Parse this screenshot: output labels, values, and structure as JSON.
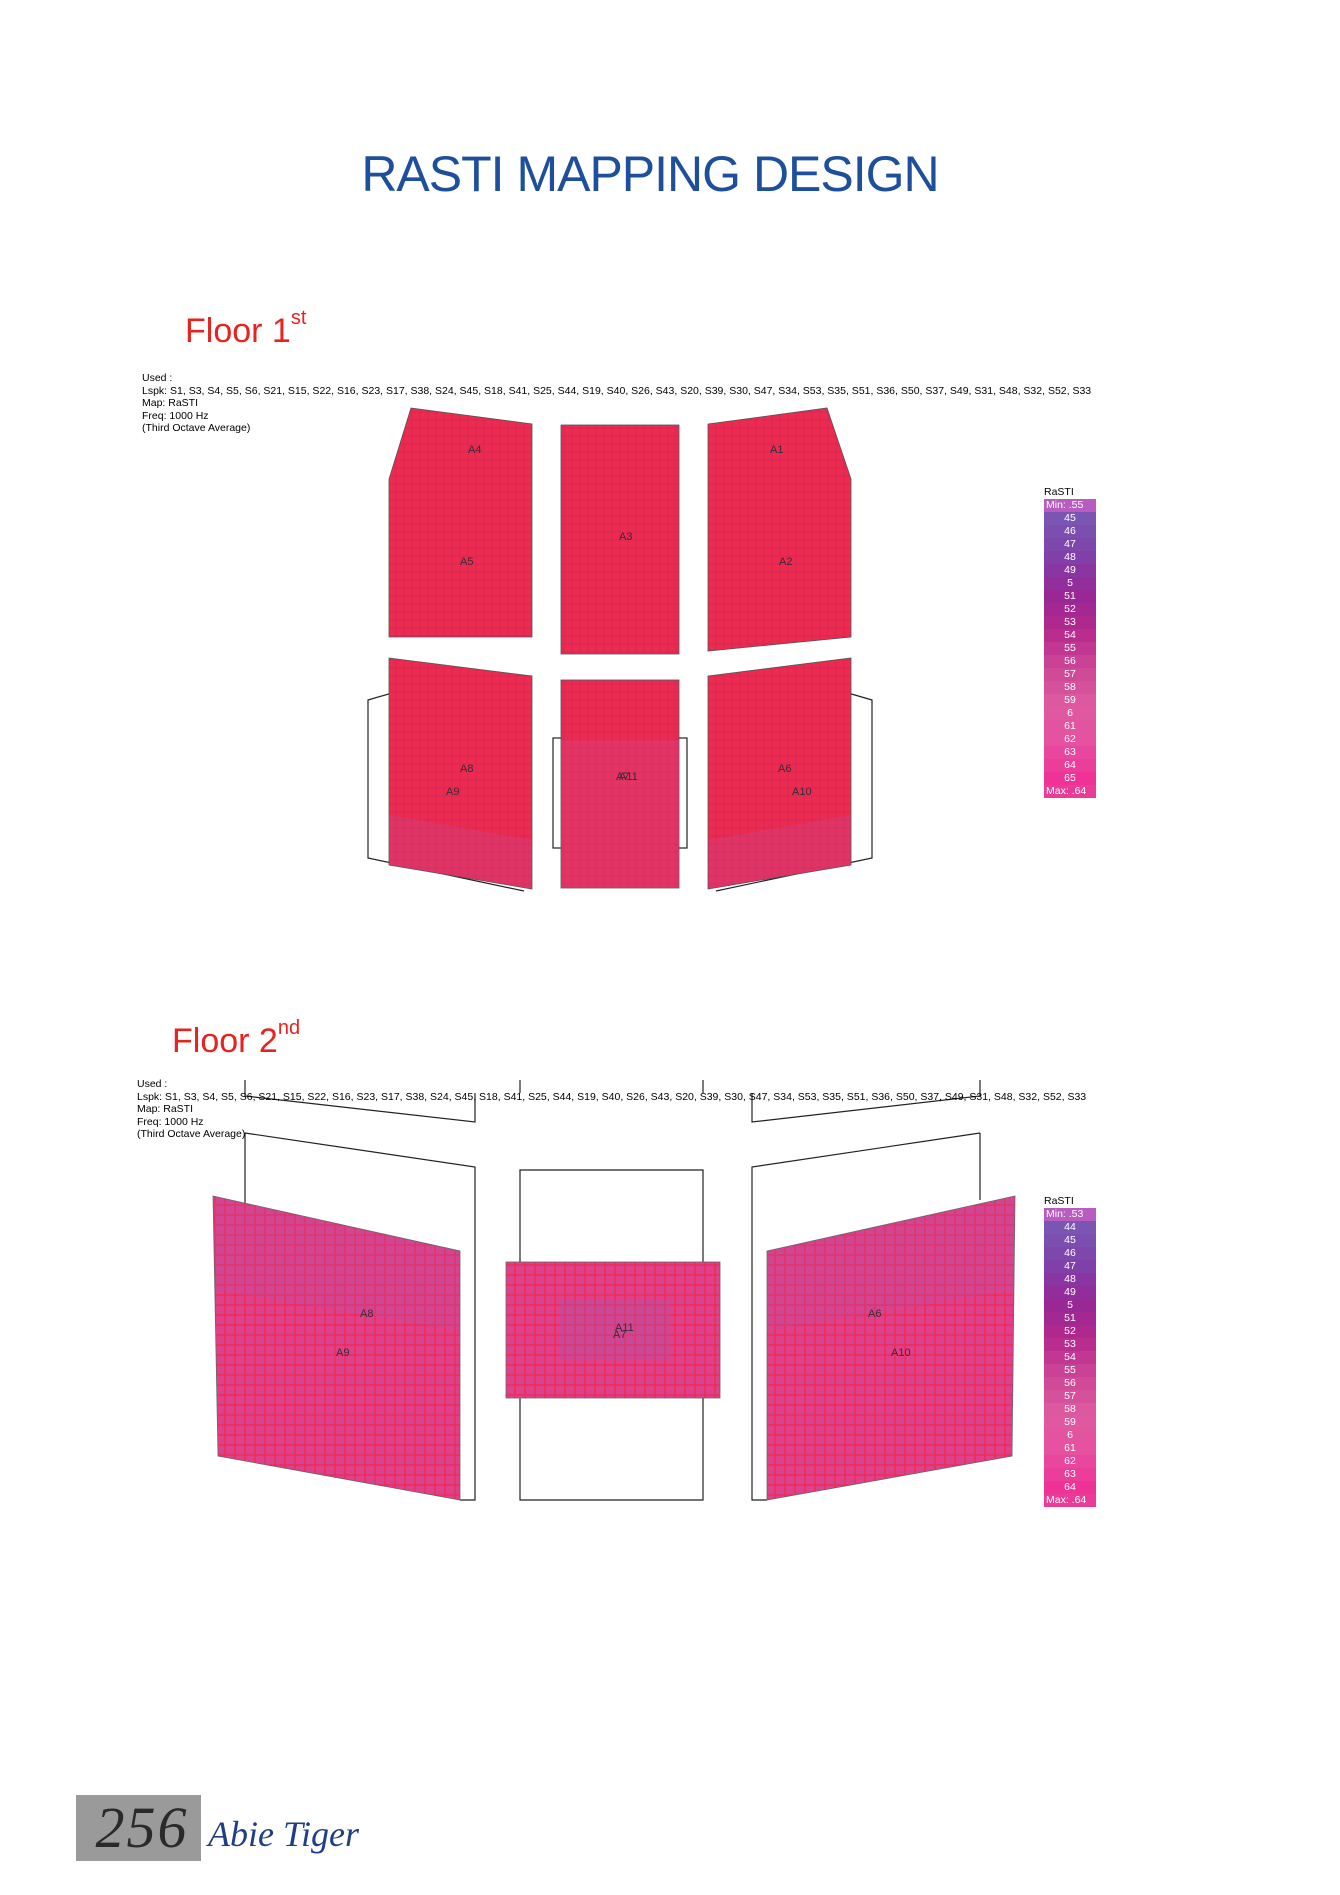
{
  "page_title": "RASTI MAPPING DESIGN",
  "floors": [
    {
      "name": "Floor 1",
      "superscript": "st",
      "info": {
        "used": "Used :",
        "lspk": "Lspk: S1, S3, S4, S5, S6, S21, S15, S22, S16, S23, S17, S38, S24, S45, S18, S41, S25, S44, S19, S40, S26, S43, S20, S39, S30, S47, S34, S53, S35, S51, S36, S50, S37, S49, S31, S48, S32, S52, S33",
        "map": "Map: RaSTI",
        "freq": "Freq: 1000 Hz",
        "avg": "(Third Octave Average)"
      },
      "area_labels": [
        "A4",
        "A5",
        "A3",
        "A1",
        "A2",
        "A8",
        "A9",
        "A11",
        "A7",
        "A6",
        "A10"
      ],
      "legend": {
        "title": "RaSTI",
        "min": "Min: .55",
        "values": [
          "45",
          "46",
          "47",
          "48",
          "49",
          "5",
          "51",
          "52",
          "53",
          "54",
          "55",
          "56",
          "57",
          "58",
          "59",
          "6",
          "61",
          "62",
          "63",
          "64",
          "65"
        ],
        "max": "Max: .64"
      }
    },
    {
      "name": "Floor 2",
      "superscript": "nd",
      "info": {
        "used": "Used :",
        "lspk": "Lspk: S1, S3, S4, S5, S6, S21, S15, S22, S16, S23, S17, S38, S24, S45, S18, S41, S25, S44, S19, S40, S26, S43, S20, S39, S30, S47, S34, S53, S35, S51, S36, S50, S37, S49, S31, S48, S32, S52, S33",
        "map": "Map: RaSTI",
        "freq": "Freq: 1000 Hz",
        "avg": "(Third Octave Average)"
      },
      "area_labels": [
        "A8",
        "A9",
        "A11",
        "A7",
        "A6",
        "A10"
      ],
      "legend": {
        "title": "RaSTI",
        "min": "Min: .53",
        "values": [
          "44",
          "45",
          "46",
          "47",
          "48",
          "49",
          "5",
          "51",
          "52",
          "53",
          "54",
          "55",
          "56",
          "57",
          "58",
          "59",
          "6",
          "61",
          "62",
          "63",
          "64"
        ],
        "max": "Max: .64"
      }
    }
  ],
  "colors": {
    "title": "#1d4f9c",
    "floor_label": "#e8221f",
    "map_red": "#ef2b4c",
    "map_pink": "#e0408a",
    "author": "#1e3f86"
  },
  "footer": {
    "page_number": "256",
    "author": "Abie Tiger"
  }
}
